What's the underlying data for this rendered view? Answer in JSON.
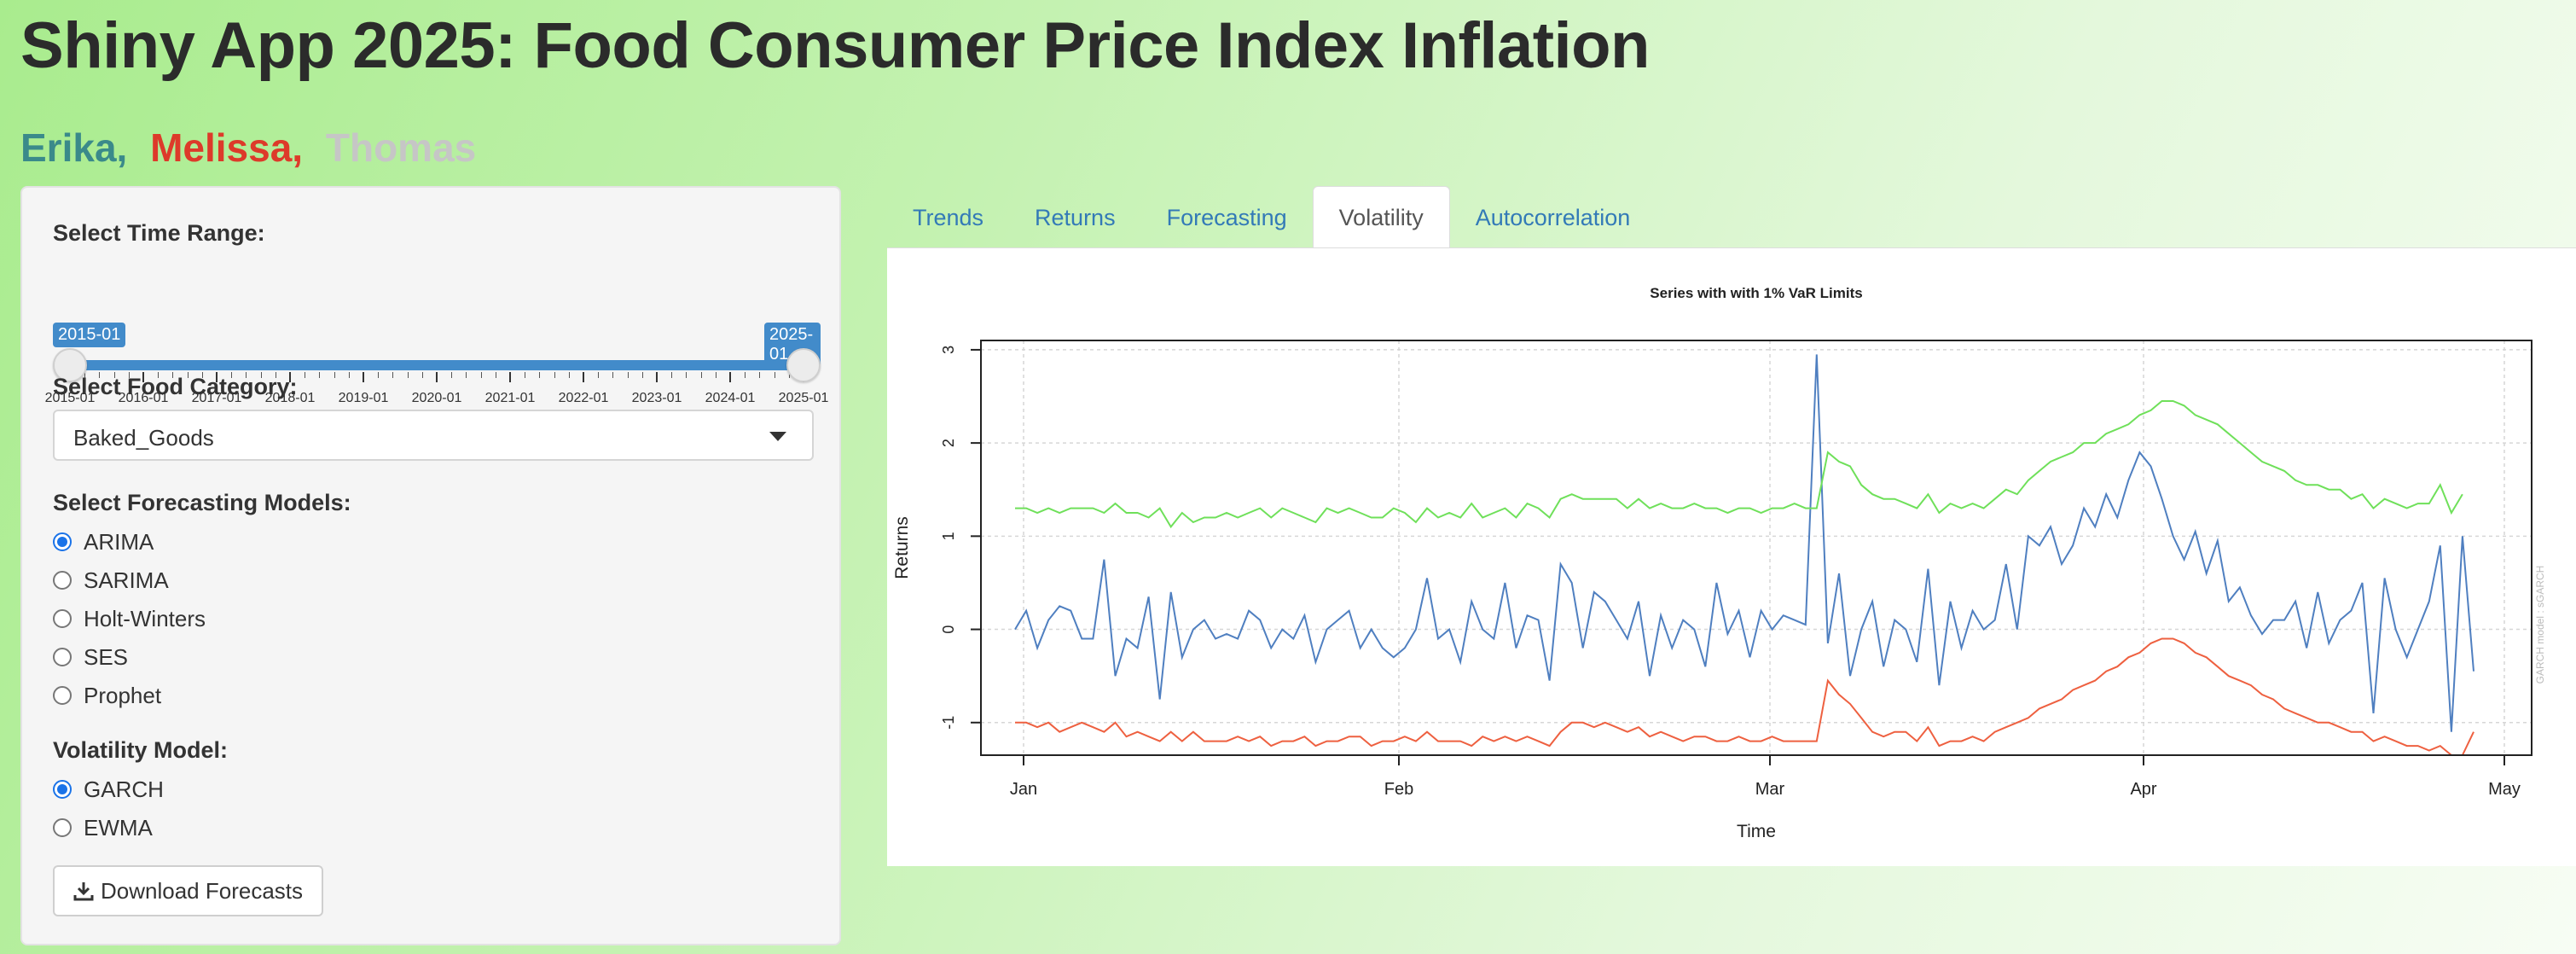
{
  "app": {
    "title": "Shiny App 2025: Food Consumer Price Index Inflation",
    "authors": [
      {
        "name": "Erika,",
        "color": "#3a8a8a"
      },
      {
        "name": "Melissa,",
        "color": "#dd3a2a"
      },
      {
        "name": "Thomas",
        "color": "#c6c6c6"
      }
    ]
  },
  "sidebar": {
    "time_range_label": "Select Time Range:",
    "slider": {
      "from_label": "2015-01",
      "to_label": "2025-01",
      "ticks": [
        "2015-01",
        "2016-01",
        "2017-01",
        "2018-01",
        "2019-01",
        "2020-01",
        "2021-01",
        "2022-01",
        "2023-01",
        "2024-01",
        "2025-01"
      ],
      "selected_from_index": 0,
      "selected_to_index": 10
    },
    "category_label": "Select Food Category:",
    "category_value": "Baked_Goods",
    "models_label": "Select Forecasting Models:",
    "models": [
      {
        "label": "ARIMA",
        "checked": true
      },
      {
        "label": "SARIMA",
        "checked": false
      },
      {
        "label": "Holt-Winters",
        "checked": false
      },
      {
        "label": "SES",
        "checked": false
      },
      {
        "label": "Prophet",
        "checked": false
      }
    ],
    "volatility_label": "Volatility Model:",
    "volatility_models": [
      {
        "label": "GARCH",
        "checked": true
      },
      {
        "label": "EWMA",
        "checked": false
      }
    ],
    "download_label": "Download Forecasts",
    "download_icon": "download-icon"
  },
  "tabs": [
    {
      "label": "Trends",
      "active": false
    },
    {
      "label": "Returns",
      "active": false
    },
    {
      "label": "Forecasting",
      "active": false
    },
    {
      "label": "Volatility",
      "active": true
    },
    {
      "label": "Autocorrelation",
      "active": false
    }
  ],
  "chart_data": {
    "type": "line",
    "title": "Series with with 1% VaR Limits",
    "xlabel": "Time",
    "ylabel": "Returns",
    "watermark": "GARCH model : sGARCH",
    "x_ticks": [
      "Jan",
      "Feb",
      "Mar",
      "Apr",
      "May"
    ],
    "y_ticks": [
      -1,
      0,
      1,
      2,
      3
    ],
    "ylim": [
      -1.35,
      3.1
    ],
    "grid": true,
    "series": [
      {
        "color": "#4f7fc0",
        "values": [
          0.0,
          0.2,
          -0.2,
          0.1,
          0.25,
          0.2,
          -0.1,
          -0.1,
          0.75,
          -0.5,
          -0.1,
          -0.2,
          0.35,
          -0.75,
          0.4,
          -0.3,
          0.0,
          0.1,
          -0.1,
          -0.05,
          -0.1,
          0.2,
          0.1,
          -0.2,
          0.0,
          -0.1,
          0.15,
          -0.35,
          0.0,
          0.1,
          0.2,
          -0.2,
          0.0,
          -0.2,
          -0.3,
          -0.2,
          0.0,
          0.55,
          -0.1,
          0.0,
          -0.35,
          0.3,
          0.0,
          -0.1,
          0.5,
          -0.2,
          0.15,
          0.1,
          -0.55,
          0.7,
          0.5,
          -0.2,
          0.4,
          0.3,
          0.1,
          -0.1,
          0.3,
          -0.5,
          0.15,
          -0.2,
          0.1,
          0.0,
          -0.4,
          0.5,
          -0.05,
          0.2,
          -0.3,
          0.2,
          0.0,
          0.15,
          0.1,
          0.05,
          2.95,
          -0.15,
          0.6,
          -0.5,
          0.0,
          0.3,
          -0.4,
          0.1,
          0.0,
          -0.35,
          0.65,
          -0.6,
          0.3,
          -0.2,
          0.2,
          0.0,
          0.1,
          0.7,
          0.0,
          1.0,
          0.9,
          1.1,
          0.7,
          0.9,
          1.3,
          1.1,
          1.45,
          1.2,
          1.6,
          1.9,
          1.75,
          1.4,
          1.0,
          0.75,
          1.05,
          0.6,
          0.95,
          0.3,
          0.45,
          0.15,
          -0.05,
          0.1,
          0.1,
          0.3,
          -0.2,
          0.4,
          -0.15,
          0.1,
          0.2,
          0.5,
          -0.9,
          0.55,
          0.0,
          -0.3,
          0.0,
          0.3,
          0.9,
          -1.1,
          1.0,
          -0.45
        ]
      },
      {
        "color": "#6fe05a",
        "values": [
          1.3,
          1.3,
          1.25,
          1.3,
          1.25,
          1.3,
          1.3,
          1.3,
          1.25,
          1.35,
          1.25,
          1.25,
          1.2,
          1.3,
          1.1,
          1.25,
          1.15,
          1.2,
          1.2,
          1.25,
          1.2,
          1.25,
          1.3,
          1.2,
          1.3,
          1.25,
          1.2,
          1.15,
          1.3,
          1.25,
          1.3,
          1.25,
          1.2,
          1.2,
          1.3,
          1.25,
          1.15,
          1.3,
          1.2,
          1.25,
          1.2,
          1.35,
          1.2,
          1.25,
          1.3,
          1.2,
          1.35,
          1.3,
          1.2,
          1.4,
          1.45,
          1.4,
          1.4,
          1.4,
          1.4,
          1.3,
          1.4,
          1.3,
          1.35,
          1.3,
          1.3,
          1.35,
          1.3,
          1.3,
          1.25,
          1.3,
          1.3,
          1.25,
          1.3,
          1.3,
          1.35,
          1.3,
          1.3,
          1.9,
          1.8,
          1.75,
          1.55,
          1.45,
          1.4,
          1.4,
          1.35,
          1.3,
          1.45,
          1.25,
          1.35,
          1.3,
          1.35,
          1.3,
          1.4,
          1.5,
          1.45,
          1.6,
          1.7,
          1.8,
          1.85,
          1.9,
          2.0,
          2.0,
          2.1,
          2.15,
          2.2,
          2.3,
          2.35,
          2.45,
          2.45,
          2.4,
          2.3,
          2.25,
          2.2,
          2.1,
          2.0,
          1.9,
          1.8,
          1.75,
          1.7,
          1.6,
          1.55,
          1.55,
          1.5,
          1.5,
          1.4,
          1.45,
          1.3,
          1.4,
          1.35,
          1.3,
          1.35,
          1.35,
          1.55,
          1.25,
          1.45
        ]
      },
      {
        "color": "#ee6040",
        "values": [
          -1.0,
          -1.0,
          -1.05,
          -1.0,
          -1.1,
          -1.05,
          -1.0,
          -1.05,
          -1.1,
          -1.0,
          -1.15,
          -1.1,
          -1.15,
          -1.2,
          -1.1,
          -1.2,
          -1.1,
          -1.2,
          -1.2,
          -1.2,
          -1.15,
          -1.2,
          -1.15,
          -1.25,
          -1.2,
          -1.2,
          -1.15,
          -1.25,
          -1.2,
          -1.2,
          -1.15,
          -1.15,
          -1.25,
          -1.2,
          -1.2,
          -1.15,
          -1.2,
          -1.1,
          -1.2,
          -1.2,
          -1.2,
          -1.25,
          -1.15,
          -1.2,
          -1.15,
          -1.2,
          -1.15,
          -1.2,
          -1.25,
          -1.1,
          -1.0,
          -1.0,
          -1.05,
          -1.0,
          -1.05,
          -1.1,
          -1.05,
          -1.15,
          -1.1,
          -1.15,
          -1.2,
          -1.15,
          -1.15,
          -1.2,
          -1.2,
          -1.15,
          -1.2,
          -1.2,
          -1.15,
          -1.2,
          -1.2,
          -1.2,
          -1.2,
          -0.55,
          -0.7,
          -0.8,
          -0.95,
          -1.1,
          -1.15,
          -1.1,
          -1.1,
          -1.2,
          -1.05,
          -1.25,
          -1.2,
          -1.2,
          -1.15,
          -1.2,
          -1.1,
          -1.05,
          -1.0,
          -0.95,
          -0.85,
          -0.8,
          -0.75,
          -0.65,
          -0.6,
          -0.55,
          -0.45,
          -0.4,
          -0.3,
          -0.25,
          -0.15,
          -0.1,
          -0.1,
          -0.15,
          -0.25,
          -0.3,
          -0.4,
          -0.5,
          -0.55,
          -0.6,
          -0.7,
          -0.75,
          -0.85,
          -0.9,
          -0.95,
          -1.0,
          -1.0,
          -1.05,
          -1.1,
          -1.1,
          -1.2,
          -1.15,
          -1.2,
          -1.25,
          -1.25,
          -1.3,
          -1.25,
          -1.35,
          -1.35,
          -1.1
        ]
      }
    ]
  }
}
